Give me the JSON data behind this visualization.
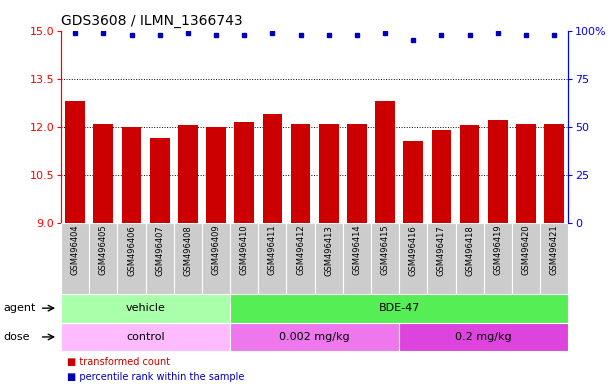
{
  "title": "GDS3608 / ILMN_1366743",
  "samples": [
    "GSM496404",
    "GSM496405",
    "GSM496406",
    "GSM496407",
    "GSM496408",
    "GSM496409",
    "GSM496410",
    "GSM496411",
    "GSM496412",
    "GSM496413",
    "GSM496414",
    "GSM496415",
    "GSM496416",
    "GSM496417",
    "GSM496418",
    "GSM496419",
    "GSM496420",
    "GSM496421"
  ],
  "bar_values": [
    12.8,
    12.1,
    12.0,
    11.65,
    12.05,
    12.0,
    12.15,
    12.4,
    12.1,
    12.1,
    12.1,
    12.8,
    11.55,
    11.9,
    12.05,
    12.2,
    12.1,
    12.1
  ],
  "percentile_values": [
    99,
    99,
    98,
    98,
    99,
    98,
    98,
    99,
    98,
    98,
    98,
    99,
    95,
    98,
    98,
    99,
    98,
    98
  ],
  "ylim_left": [
    9,
    15
  ],
  "ylim_right": [
    0,
    100
  ],
  "yticks_left": [
    9,
    10.5,
    12,
    13.5,
    15
  ],
  "yticks_right": [
    0,
    25,
    50,
    75,
    100
  ],
  "bar_color": "#cc0000",
  "dot_color": "#0000bb",
  "agent_groups": [
    {
      "label": "vehicle",
      "start": 0,
      "end": 6,
      "color": "#aaffaa"
    },
    {
      "label": "BDE-47",
      "start": 6,
      "end": 18,
      "color": "#55ee55"
    }
  ],
  "dose_groups": [
    {
      "label": "control",
      "start": 0,
      "end": 6,
      "color": "#ffbbff"
    },
    {
      "label": "0.002 mg/kg",
      "start": 6,
      "end": 12,
      "color": "#ee77ee"
    },
    {
      "label": "0.2 mg/kg",
      "start": 12,
      "end": 18,
      "color": "#dd44dd"
    }
  ],
  "legend_items": [
    {
      "label": "transformed count",
      "color": "#cc0000"
    },
    {
      "label": "percentile rank within the sample",
      "color": "#0000bb"
    }
  ],
  "sample_bg_color": "#cccccc",
  "dotted_lines": [
    10.5,
    12.0,
    13.5
  ],
  "bar_width": 0.7,
  "title_fontsize": 10,
  "tick_fontsize": 8,
  "label_fontsize": 8,
  "sample_fontsize": 6
}
